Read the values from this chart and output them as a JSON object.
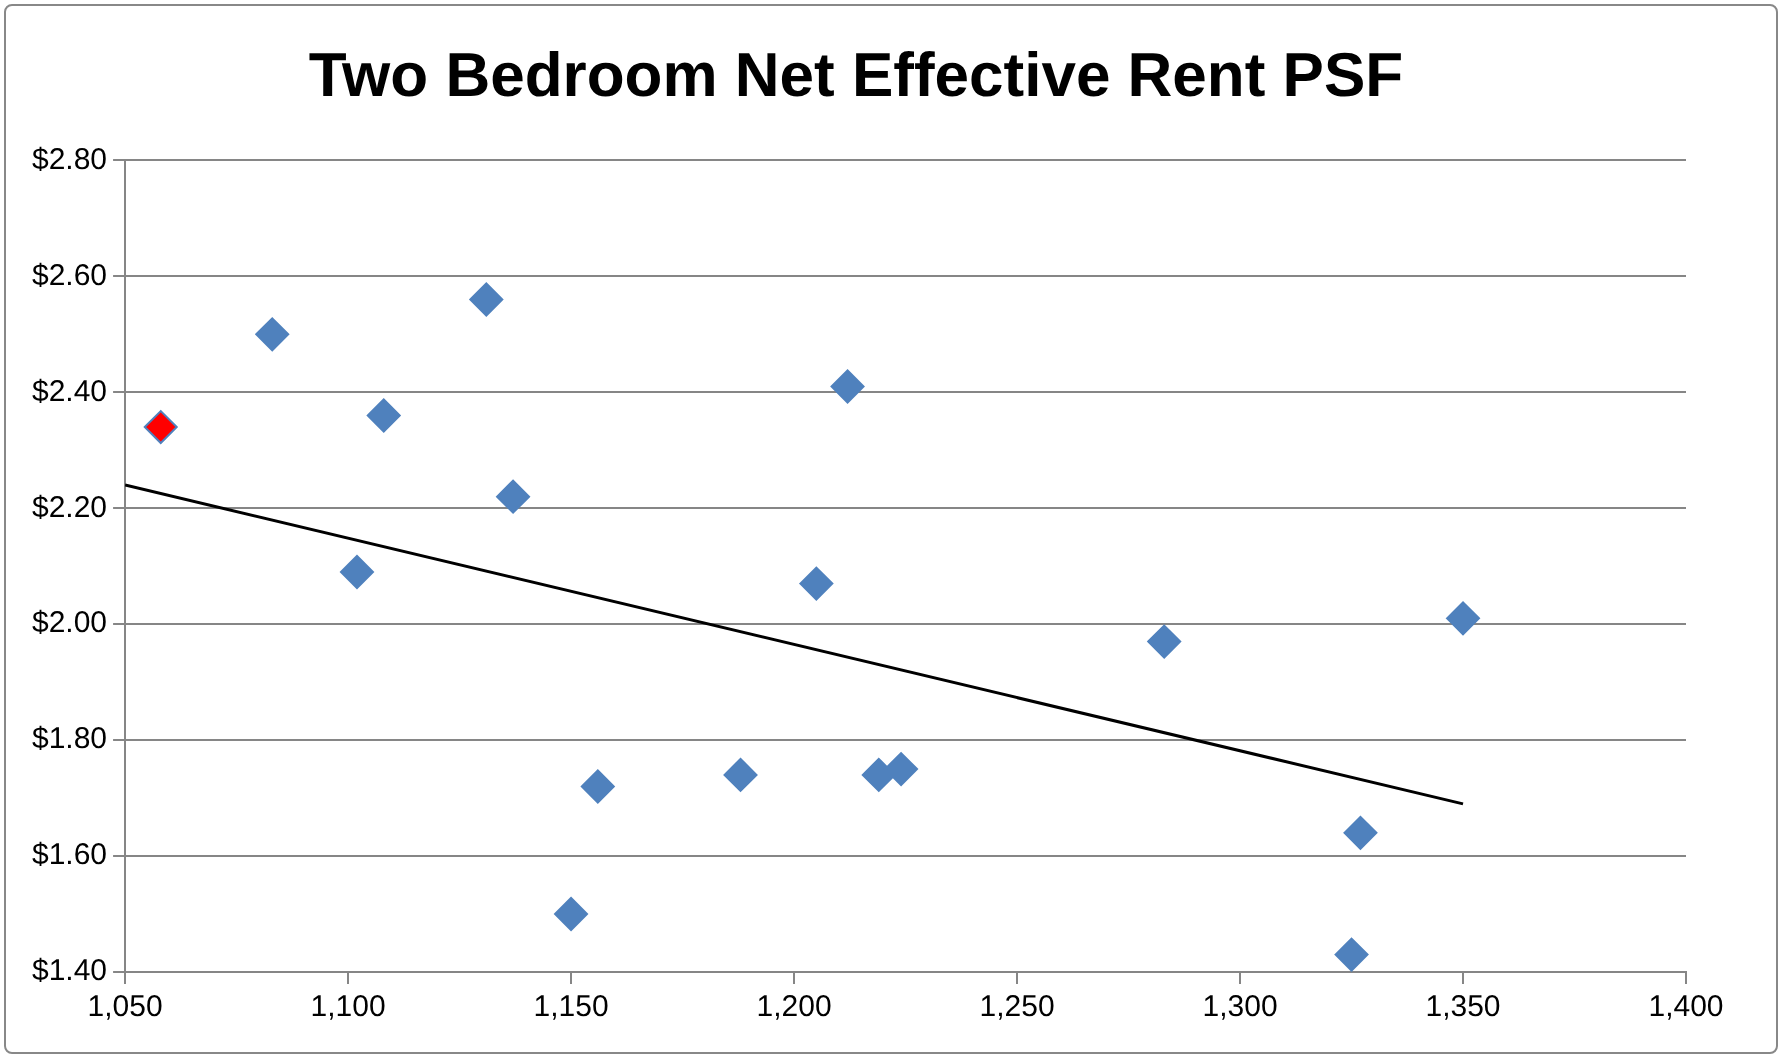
{
  "chart_data": {
    "type": "scatter",
    "title": "Two Bedroom Net Effective Rent PSF",
    "marker": "diamond",
    "grid": "y",
    "xlim": [
      1050,
      1400
    ],
    "xticks": [
      {
        "value": 1050,
        "label": "1,050"
      },
      {
        "value": 1100,
        "label": "1,100"
      },
      {
        "value": 1150,
        "label": "1,150"
      },
      {
        "value": 1200,
        "label": "1,200"
      },
      {
        "value": 1250,
        "label": "1,250"
      },
      {
        "value": 1300,
        "label": "1,300"
      },
      {
        "value": 1350,
        "label": "1,350"
      },
      {
        "value": 1400,
        "label": "1,400"
      }
    ],
    "ylim": [
      1.4,
      2.8
    ],
    "yticks": [
      {
        "value": 1.4,
        "label": "$1.40"
      },
      {
        "value": 1.6,
        "label": "$1.60"
      },
      {
        "value": 1.8,
        "label": "$1.80"
      },
      {
        "value": 2.0,
        "label": "$2.00"
      },
      {
        "value": 2.2,
        "label": "$2.20"
      },
      {
        "value": 2.4,
        "label": "$2.40"
      },
      {
        "value": 2.6,
        "label": "$2.60"
      },
      {
        "value": 2.8,
        "label": "$2.80"
      }
    ],
    "series": [
      {
        "type": "scatter",
        "color": "#4f81bd",
        "x": [
          1058,
          1083,
          1102,
          1108,
          1131,
          1137,
          1150,
          1156,
          1188,
          1205,
          1212,
          1219,
          1224,
          1283,
          1327,
          1325,
          1350
        ],
        "values": [
          2.34,
          2.5,
          2.09,
          2.36,
          2.56,
          2.22,
          1.5,
          1.72,
          1.74,
          2.07,
          2.41,
          1.74,
          1.75,
          1.97,
          1.64,
          1.43,
          2.01
        ],
        "colors": [
          "#ff0000",
          "#4f81bd",
          "#4f81bd",
          "#4f81bd",
          "#4f81bd",
          "#4f81bd",
          "#4f81bd",
          "#4f81bd",
          "#4f81bd",
          "#4f81bd",
          "#4f81bd",
          "#4f81bd",
          "#4f81bd",
          "#4f81bd",
          "#4f81bd",
          "#4f81bd",
          "#4f81bd"
        ]
      },
      {
        "type": "line",
        "color": "#000000",
        "marker": "none",
        "x": [
          1050,
          1350
        ],
        "values": [
          2.24,
          1.69
        ]
      }
    ]
  }
}
